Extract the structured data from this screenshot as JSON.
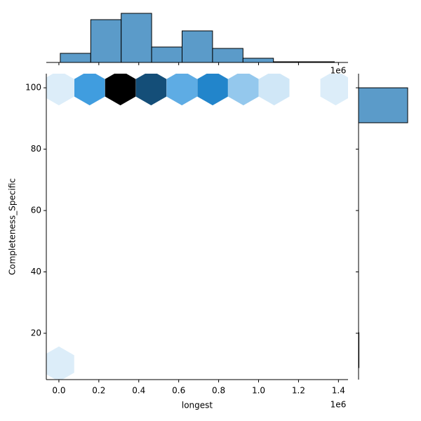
{
  "chart_data": {
    "type": "hexbin",
    "xlabel": "longest",
    "ylabel": "Completeness_Specific",
    "x_offset_label": "1e6",
    "xlim": [
      -63000,
      1448000
    ],
    "ylim": [
      4.9,
      104.6
    ],
    "xticks": [
      {
        "value": 0,
        "label": "0.0"
      },
      {
        "value": 200000,
        "label": "0.2"
      },
      {
        "value": 400000,
        "label": "0.4"
      },
      {
        "value": 600000,
        "label": "0.6"
      },
      {
        "value": 800000,
        "label": "0.8"
      },
      {
        "value": 1000000,
        "label": "1.0"
      },
      {
        "value": 1200000,
        "label": "1.2"
      },
      {
        "value": 1400000,
        "label": "1.4"
      }
    ],
    "yticks": [
      20,
      40,
      60,
      80,
      100
    ],
    "color": "#1f77b4",
    "hexbin": {
      "x": [
        0,
        154000,
        308000,
        462000,
        616000,
        770000,
        924000,
        1078000,
        1386000,
        0
      ],
      "y": [
        100,
        100,
        100,
        100,
        100,
        100,
        100,
        100,
        100,
        10
      ],
      "counts": [
        3,
        29,
        70,
        50,
        24,
        36,
        15,
        5,
        3,
        3
      ]
    },
    "hist_color": "#5b9bc9",
    "marginal_x": {
      "bins": [
        7000,
        159500,
        312000,
        464500,
        617000,
        769500,
        922000,
        1074500,
        1227000,
        1379500
      ],
      "counts": [
        13,
        61,
        70,
        22,
        45,
        20,
        6,
        1,
        1
      ]
    },
    "marginal_y": {
      "bins": [
        8.8,
        20.2,
        31.6,
        43,
        54.4,
        65.8,
        77.2,
        88.6,
        100
      ],
      "counts": [
        2,
        0,
        0,
        0,
        0,
        0,
        0,
        237
      ]
    }
  }
}
